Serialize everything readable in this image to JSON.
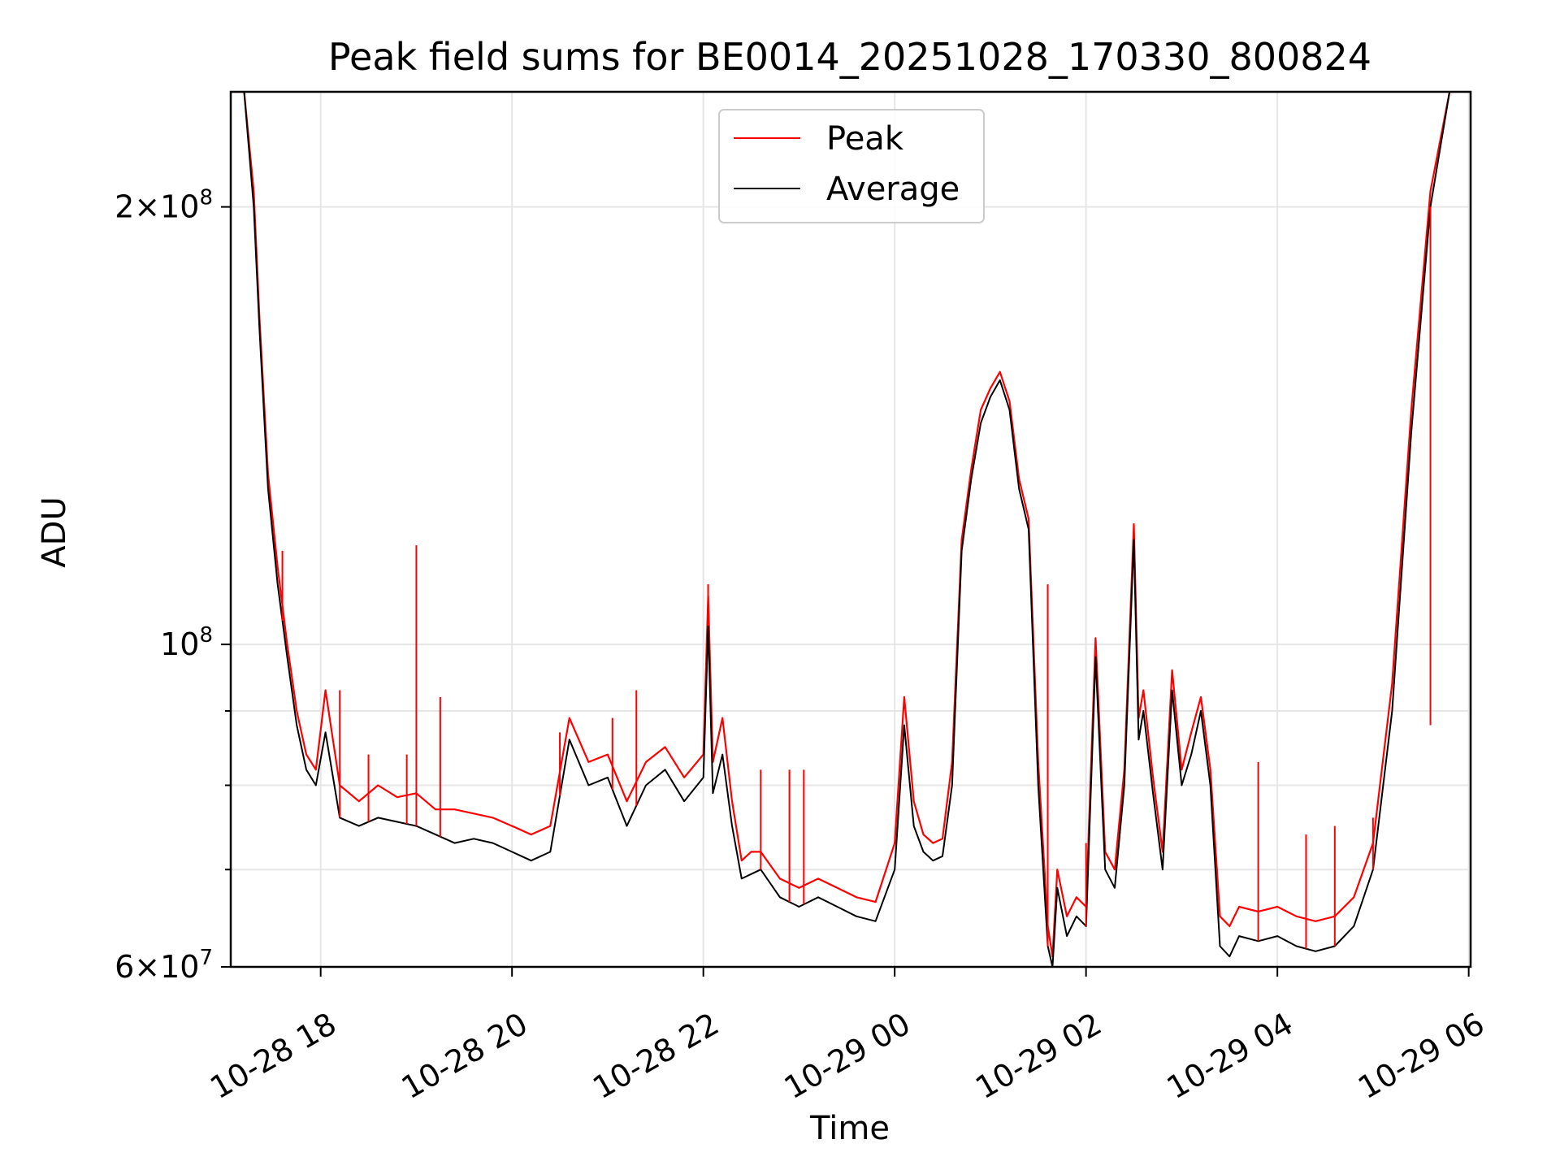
{
  "chart_data": {
    "type": "line",
    "title": "Peak field sums for BE0014_20251028_170330_800824",
    "xlabel": "Time",
    "ylabel": "ADU",
    "yscale": "log",
    "ylim": [
      60000000,
      240000000
    ],
    "xlim_hours": [
      17.06,
      30.02
    ],
    "grid": true,
    "legend": {
      "placement": "top-center",
      "entries": [
        "Peak",
        "Average"
      ]
    },
    "colors": {
      "Peak": "#ff0000",
      "Average": "#000000"
    },
    "x_ticks": [
      {
        "hour": 18,
        "label": "10-28 18"
      },
      {
        "hour": 20,
        "label": "10-28 20"
      },
      {
        "hour": 22,
        "label": "10-28 22"
      },
      {
        "hour": 24,
        "label": "10-29 00"
      },
      {
        "hour": 26,
        "label": "10-29 02"
      },
      {
        "hour": 28,
        "label": "10-29 04"
      },
      {
        "hour": 30,
        "label": "10-29 06"
      }
    ],
    "y_ticks_major": [
      {
        "value": 60000000,
        "mantissa": "6",
        "exp": "7"
      },
      {
        "value": 100000000,
        "mantissa": "",
        "exp": "8"
      },
      {
        "value": 200000000,
        "mantissa": "2",
        "exp": "8"
      }
    ],
    "y_ticks_minor": [
      70000000,
      80000000,
      90000000
    ],
    "series": [
      {
        "name": "Average",
        "x_hours": [
          17.06,
          17.2,
          17.3,
          17.36,
          17.45,
          17.55,
          17.65,
          17.75,
          17.85,
          17.95,
          18.05,
          18.2,
          18.4,
          18.6,
          18.8,
          19.0,
          19.2,
          19.4,
          19.6,
          19.8,
          20.0,
          20.2,
          20.4,
          20.6,
          20.8,
          21.0,
          21.2,
          21.4,
          21.6,
          21.8,
          22.0,
          22.05,
          22.1,
          22.2,
          22.3,
          22.4,
          22.5,
          22.6,
          22.8,
          23.0,
          23.2,
          23.4,
          23.6,
          23.8,
          24.0,
          24.1,
          24.2,
          24.3,
          24.4,
          24.5,
          24.6,
          24.7,
          24.8,
          24.9,
          25.0,
          25.1,
          25.2,
          25.3,
          25.4,
          25.5,
          25.6,
          25.65,
          25.7,
          25.8,
          25.9,
          26.0,
          26.1,
          26.2,
          26.3,
          26.4,
          26.5,
          26.55,
          26.6,
          26.7,
          26.8,
          26.9,
          27.0,
          27.1,
          27.2,
          27.3,
          27.4,
          27.5,
          27.6,
          27.8,
          28.0,
          28.2,
          28.4,
          28.6,
          28.8,
          29.0,
          29.2,
          29.4,
          29.6,
          29.8,
          29.85
        ],
        "values": [
          240000000,
          240000000,
          200000000,
          165000000,
          128000000,
          110000000,
          98000000,
          88000000,
          82000000,
          80000000,
          87000000,
          76000000,
          75000000,
          76000000,
          75500000,
          75000000,
          74000000,
          73000000,
          73500000,
          73000000,
          72000000,
          71000000,
          72000000,
          86000000,
          80000000,
          81000000,
          75000000,
          80000000,
          82000000,
          78000000,
          81000000,
          103000000,
          79000000,
          84000000,
          75000000,
          69000000,
          69500000,
          70000000,
          67000000,
          66000000,
          67000000,
          66000000,
          65000000,
          64500000,
          70000000,
          88000000,
          75000000,
          72000000,
          71000000,
          71500000,
          80000000,
          116000000,
          130000000,
          142000000,
          148000000,
          152000000,
          145000000,
          128000000,
          120000000,
          80000000,
          62000000,
          60000000,
          68000000,
          63000000,
          65000000,
          64000000,
          98000000,
          70000000,
          68000000,
          80000000,
          118000000,
          86000000,
          90000000,
          79000000,
          70000000,
          93000000,
          80000000,
          84000000,
          90000000,
          80000000,
          62000000,
          61000000,
          63000000,
          62500000,
          63000000,
          62000000,
          61500000,
          62000000,
          64000000,
          70000000,
          90000000,
          140000000,
          200000000,
          240000000,
          240000000
        ]
      },
      {
        "name": "Peak",
        "x_hours": [
          17.06,
          17.2,
          17.3,
          17.36,
          17.45,
          17.55,
          17.65,
          17.75,
          17.85,
          17.95,
          18.05,
          18.2,
          18.4,
          18.6,
          18.8,
          19.0,
          19.2,
          19.4,
          19.6,
          19.8,
          20.0,
          20.2,
          20.4,
          20.6,
          20.8,
          21.0,
          21.2,
          21.4,
          21.6,
          21.8,
          22.0,
          22.05,
          22.1,
          22.2,
          22.3,
          22.4,
          22.5,
          22.6,
          22.8,
          23.0,
          23.2,
          23.4,
          23.6,
          23.8,
          24.0,
          24.1,
          24.2,
          24.3,
          24.4,
          24.5,
          24.6,
          24.7,
          24.8,
          24.9,
          25.0,
          25.1,
          25.2,
          25.3,
          25.4,
          25.5,
          25.6,
          25.65,
          25.7,
          25.8,
          25.9,
          26.0,
          26.1,
          26.2,
          26.3,
          26.4,
          26.5,
          26.55,
          26.6,
          26.7,
          26.8,
          26.9,
          27.0,
          27.1,
          27.2,
          27.3,
          27.4,
          27.5,
          27.6,
          27.8,
          28.0,
          28.2,
          28.4,
          28.6,
          28.8,
          29.0,
          29.2,
          29.4,
          29.6,
          29.8,
          29.85
        ],
        "values": [
          240000000,
          240000000,
          205000000,
          168000000,
          131000000,
          113000000,
          100000000,
          90000000,
          84000000,
          82000000,
          93000000,
          80000000,
          78000000,
          80000000,
          78500000,
          79000000,
          77000000,
          77000000,
          76500000,
          76000000,
          75000000,
          74000000,
          75000000,
          89000000,
          83000000,
          84000000,
          78000000,
          83000000,
          85000000,
          81000000,
          84000000,
          108000000,
          83000000,
          89000000,
          78000000,
          71000000,
          72000000,
          72000000,
          69000000,
          68000000,
          69000000,
          68000000,
          67000000,
          66500000,
          73000000,
          92000000,
          78000000,
          74000000,
          73000000,
          73500000,
          83000000,
          118000000,
          132000000,
          145000000,
          150000000,
          154000000,
          147000000,
          130000000,
          122000000,
          83000000,
          64000000,
          61000000,
          70000000,
          65000000,
          67000000,
          66000000,
          101000000,
          72000000,
          70000000,
          82000000,
          121000000,
          89000000,
          93000000,
          81000000,
          72000000,
          96000000,
          82000000,
          87000000,
          92000000,
          82000000,
          65000000,
          64000000,
          66000000,
          65500000,
          66000000,
          65000000,
          64500000,
          65000000,
          67000000,
          73000000,
          94000000,
          145000000,
          205000000,
          240000000,
          240000000
        ]
      }
    ],
    "spikes_peak": [
      {
        "hour": 17.6,
        "value": 116000000
      },
      {
        "hour": 18.2,
        "value": 93000000
      },
      {
        "hour": 18.5,
        "value": 84000000
      },
      {
        "hour": 18.9,
        "value": 84000000
      },
      {
        "hour": 19.0,
        "value": 117000000
      },
      {
        "hour": 19.25,
        "value": 92000000
      },
      {
        "hour": 20.5,
        "value": 87000000
      },
      {
        "hour": 21.05,
        "value": 89000000
      },
      {
        "hour": 21.3,
        "value": 93000000
      },
      {
        "hour": 22.05,
        "value": 110000000
      },
      {
        "hour": 22.6,
        "value": 82000000
      },
      {
        "hour": 22.9,
        "value": 82000000
      },
      {
        "hour": 23.05,
        "value": 82000000
      },
      {
        "hour": 25.6,
        "value": 110000000
      },
      {
        "hour": 26.0,
        "value": 73000000
      },
      {
        "hour": 27.8,
        "value": 83000000
      },
      {
        "hour": 28.3,
        "value": 74000000
      },
      {
        "hour": 28.6,
        "value": 75000000
      },
      {
        "hour": 29.0,
        "value": 76000000
      },
      {
        "hour": 29.6,
        "value": 88000000
      }
    ]
  }
}
